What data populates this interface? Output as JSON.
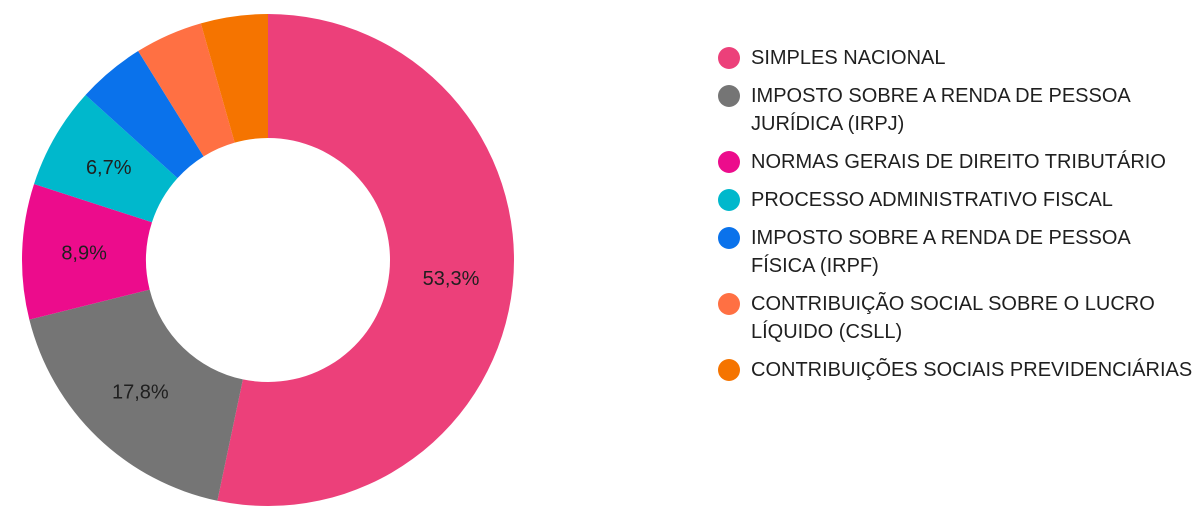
{
  "chart_data": {
    "type": "pie",
    "variant": "donut",
    "legend_position": "right",
    "slices": [
      {
        "label": "SIMPLES NACIONAL",
        "value": 53.3,
        "display": "53,3%",
        "color": "#ec407a"
      },
      {
        "label": "IMPOSTO SOBRE A RENDA DE PESSOA JURÍDICA (IRPJ)",
        "value": 17.8,
        "display": "17,8%",
        "color": "#757575"
      },
      {
        "label": "NORMAS GERAIS DE DIREITO TRIBUTÁRIO",
        "value": 8.9,
        "display": "8,9%",
        "color": "#ec0c8c"
      },
      {
        "label": "PROCESSO ADMINISTRATIVO FISCAL",
        "value": 6.7,
        "display": "6,7%",
        "color": "#00b8cc"
      },
      {
        "label": "IMPOSTO SOBRE A RENDA DE PESSOA FÍSICA (IRPF)",
        "value": 4.45,
        "display": "",
        "color": "#0a72eb"
      },
      {
        "label": "CONTRIBUIÇÃO SOCIAL SOBRE O LUCRO LÍQUIDO (CSLL)",
        "value": 4.45,
        "display": "",
        "color": "#ff7043"
      },
      {
        "label": "CONTRIBUIÇÕES SOCIAIS PREVIDENCIÁRIAS",
        "value": 4.4,
        "display": "",
        "color": "#f57400"
      }
    ]
  }
}
